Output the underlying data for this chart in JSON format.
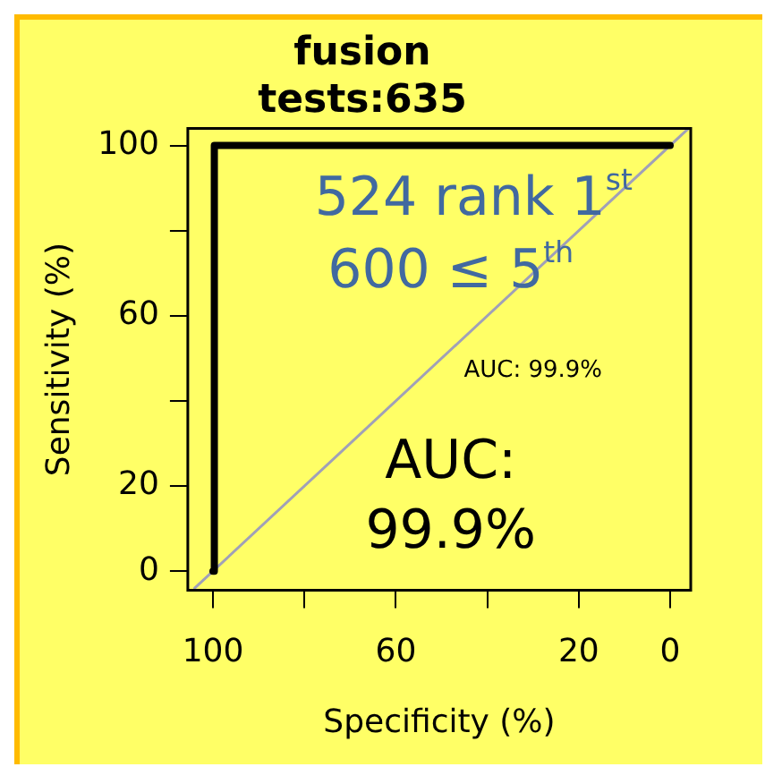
{
  "chart_data": {
    "type": "line",
    "title": "fusion",
    "subtitle": "tests:635",
    "xlabel": "Specificity (%)",
    "ylabel": "Sensitivity (%)",
    "xlim": [
      105.5,
      -4.5
    ],
    "ylim": [
      -4.5,
      104
    ],
    "xticks": [
      100,
      {
        "value": 80,
        "label": null
      },
      60,
      {
        "value": 40,
        "label": null
      },
      20,
      0
    ],
    "yticks": [
      0,
      20,
      {
        "value": 40,
        "label": null
      },
      60,
      {
        "value": 80,
        "label": null
      },
      100
    ],
    "series": [
      {
        "color": "#000000",
        "x": [
          100,
          99.7,
          0
        ],
        "values": [
          0,
          100,
          100
        ]
      },
      {
        "color": "#a0a0b8",
        "x": [
          104,
          -4
        ],
        "values": [
          -4,
          104
        ]
      }
    ],
    "annotations": [
      "524 rank 1$^{st}$",
      "600 ≤ 5$^{th}$",
      "AUC: 99.9%",
      "AUC: 99.9%"
    ],
    "grid": false,
    "legend": false,
    "marker": "none",
    "line_style": "solid"
  }
}
